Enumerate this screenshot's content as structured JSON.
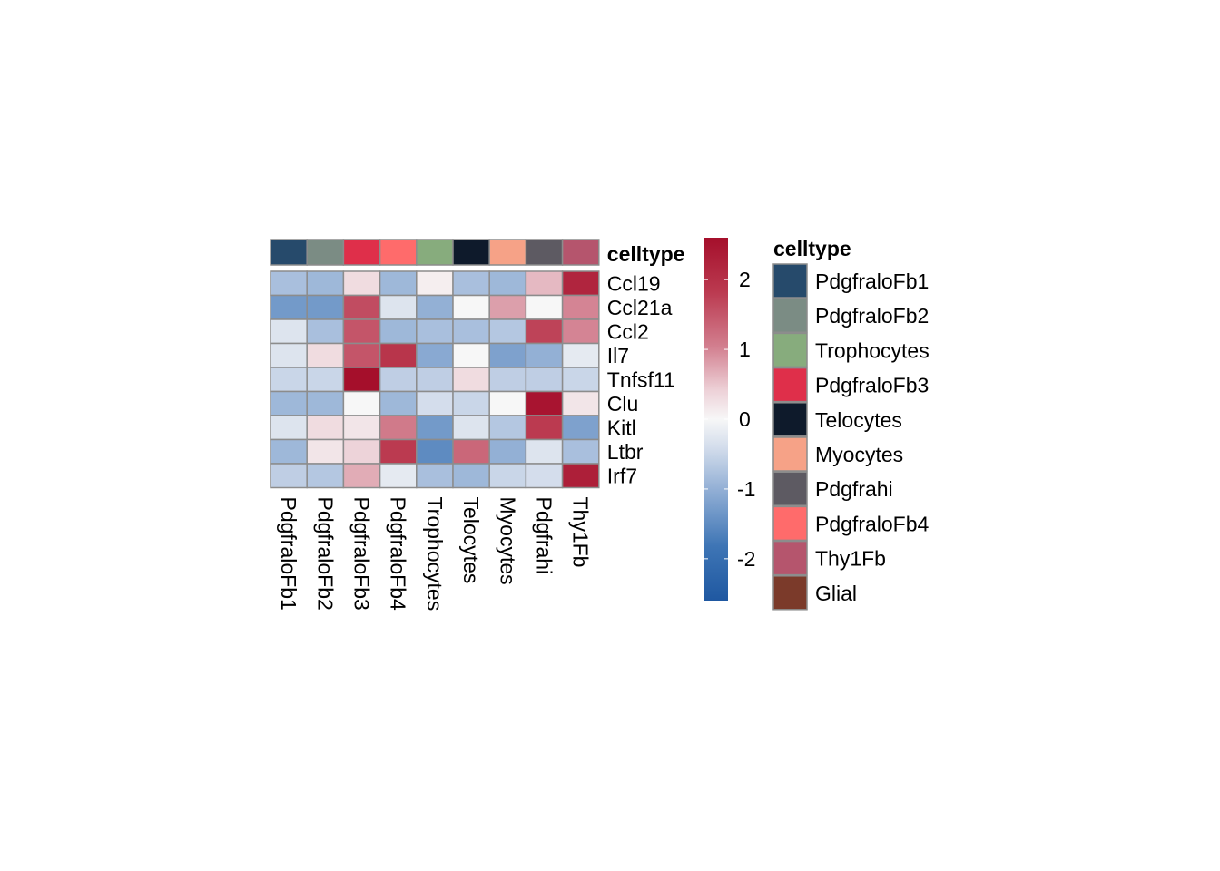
{
  "chart_data": {
    "type": "heatmap",
    "columns": [
      "PdgfraloFb1",
      "PdgfraloFb2",
      "PdgfraloFb3",
      "PdgfraloFb4",
      "Trophocytes",
      "Telocytes",
      "Myocytes",
      "Pdgfrahi",
      "Thy1Fb"
    ],
    "rows": [
      "Ccl19",
      "Ccl21a",
      "Ccl2",
      "Il7",
      "Tnfsf11",
      "Clu",
      "Kitl",
      "Ltbr",
      "Irf7"
    ],
    "values": [
      [
        -0.8,
        -0.9,
        0.3,
        -0.9,
        0.1,
        -0.8,
        -0.9,
        0.6,
        2.2
      ],
      [
        -1.3,
        -1.3,
        1.6,
        -0.3,
        -1.0,
        0.0,
        0.8,
        0.0,
        1.0
      ],
      [
        -0.3,
        -0.8,
        1.5,
        -0.9,
        -0.8,
        -0.8,
        -0.7,
        1.7,
        1.0
      ],
      [
        -0.3,
        0.3,
        1.5,
        1.9,
        -1.1,
        0.0,
        -1.2,
        -1.0,
        -0.2
      ],
      [
        -0.5,
        -0.5,
        2.6,
        -0.6,
        -0.6,
        0.3,
        -0.6,
        -0.6,
        -0.5
      ],
      [
        -0.9,
        -0.9,
        0.0,
        -0.9,
        -0.4,
        -0.5,
        0.0,
        2.5,
        0.2
      ],
      [
        -0.3,
        0.3,
        0.2,
        1.1,
        -1.3,
        -0.3,
        -0.7,
        1.8,
        -1.2
      ],
      [
        -0.9,
        0.2,
        0.4,
        1.8,
        -1.5,
        1.3,
        -1.0,
        -0.3,
        -0.8
      ],
      [
        -0.6,
        -0.7,
        0.7,
        -0.2,
        -0.8,
        -0.9,
        -0.5,
        -0.4,
        2.3
      ]
    ],
    "annotation": {
      "title": "celltype",
      "column_colors": [
        "#264A6B",
        "#7B8C84",
        "#DF2F4A",
        "#FF6B6B",
        "#87AC7D",
        "#0E1A2B",
        "#F6A287",
        "#5D5A62",
        "#B5556D"
      ]
    },
    "colorbar": {
      "ticks": [
        2,
        1,
        0,
        -1,
        -2
      ],
      "range": [
        -2.6,
        2.6
      ],
      "low_color": "#1F58A1",
      "mid_color": "#F7F7F7",
      "high_color": "#A50F2B"
    },
    "legend": {
      "title": "celltype",
      "items": [
        {
          "label": "PdgfraloFb1",
          "color": "#264A6B"
        },
        {
          "label": "PdgfraloFb2",
          "color": "#7B8C84"
        },
        {
          "label": "Trophocytes",
          "color": "#87AC7D"
        },
        {
          "label": "PdgfraloFb3",
          "color": "#DF2F4A"
        },
        {
          "label": "Telocytes",
          "color": "#0E1A2B"
        },
        {
          "label": "Myocytes",
          "color": "#F6A287"
        },
        {
          "label": "Pdgfrahi",
          "color": "#5D5A62"
        },
        {
          "label": "PdgfraloFb4",
          "color": "#FF6B6B"
        },
        {
          "label": "Thy1Fb",
          "color": "#B5556D"
        },
        {
          "label": "Glial",
          "color": "#7B3A2A"
        }
      ]
    }
  }
}
